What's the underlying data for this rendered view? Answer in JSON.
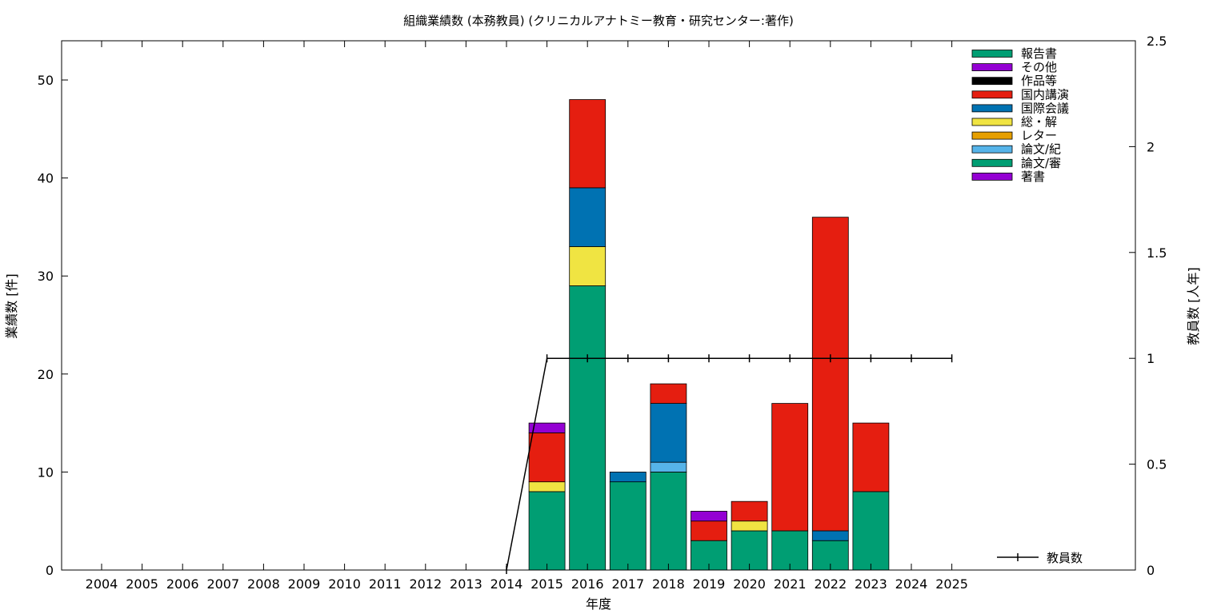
{
  "chart_data": {
    "type": "bar",
    "title": "組織業績数 (本務教員) (クリニカルアナトミー教育・研究センター:著作)",
    "xlabel": "年度",
    "ylabel": "業績数 [件]",
    "y2label": "教員数 [人年]",
    "ylim": [
      0,
      54
    ],
    "y2lim": [
      0,
      2.5
    ],
    "yticks": [
      "0",
      "10",
      "20",
      "30",
      "40",
      "50"
    ],
    "y2ticks": [
      "0",
      "0.5",
      "1",
      "1.5",
      "2",
      "2.5"
    ],
    "categories": [
      "2004",
      "2005",
      "2006",
      "2007",
      "2008",
      "2009",
      "2010",
      "2011",
      "2012",
      "2013",
      "2014",
      "2015",
      "2016",
      "2017",
      "2018",
      "2019",
      "2020",
      "2021",
      "2022",
      "2023",
      "2024",
      "2025"
    ],
    "grid": false,
    "legend_position": "top-right",
    "series": [
      {
        "name": "論文/審",
        "color": "#009e73",
        "values": [
          0,
          0,
          0,
          0,
          0,
          0,
          0,
          0,
          0,
          0,
          0,
          8,
          29,
          9,
          10,
          3,
          4,
          4,
          3,
          8,
          0,
          0
        ]
      },
      {
        "name": "論文/紀",
        "color": "#56b4e9",
        "values": [
          0,
          0,
          0,
          0,
          0,
          0,
          0,
          0,
          0,
          0,
          0,
          0,
          0,
          0,
          1,
          0,
          0,
          0,
          0,
          0,
          0,
          0
        ]
      },
      {
        "name": "総・解",
        "color": "#f0e442",
        "values": [
          0,
          0,
          0,
          0,
          0,
          0,
          0,
          0,
          0,
          0,
          0,
          1,
          4,
          0,
          0,
          0,
          1,
          0,
          0,
          0,
          0,
          0
        ]
      },
      {
        "name": "国際会議",
        "color": "#0072b2",
        "values": [
          0,
          0,
          0,
          0,
          0,
          0,
          0,
          0,
          0,
          0,
          0,
          0,
          6,
          1,
          6,
          0,
          0,
          0,
          1,
          0,
          0,
          0
        ]
      },
      {
        "name": "国内講演",
        "color": "#e51e10",
        "values": [
          0,
          0,
          0,
          0,
          0,
          0,
          0,
          0,
          0,
          0,
          0,
          5,
          9,
          0,
          2,
          2,
          2,
          13,
          32,
          7,
          0,
          0
        ]
      },
      {
        "name": "その他",
        "color": "#9400d3",
        "values": [
          0,
          0,
          0,
          0,
          0,
          0,
          0,
          0,
          0,
          0,
          0,
          1,
          0,
          0,
          0,
          1,
          0,
          0,
          0,
          0,
          0,
          0
        ]
      }
    ],
    "legend": [
      {
        "name": "報告書",
        "color": "#009e73"
      },
      {
        "name": "その他",
        "color": "#9400d3"
      },
      {
        "name": "作品等",
        "color": "#000000"
      },
      {
        "name": "国内講演",
        "color": "#e51e10"
      },
      {
        "name": "国際会議",
        "color": "#0072b2"
      },
      {
        "name": "総・解",
        "color": "#f0e442"
      },
      {
        "name": "レター",
        "color": "#e69f00"
      },
      {
        "name": "論文/紀",
        "color": "#56b4e9"
      },
      {
        "name": "論文/審",
        "color": "#009e73"
      },
      {
        "name": "著書",
        "color": "#9400d3"
      }
    ],
    "line_series": {
      "name": "教員数",
      "axis": "y2",
      "x": [
        "2014",
        "2015",
        "2016",
        "2017",
        "2018",
        "2019",
        "2020",
        "2021",
        "2022",
        "2023",
        "2024",
        "2025"
      ],
      "values": [
        0,
        1,
        1,
        1,
        1,
        1,
        1,
        1,
        1,
        1,
        1,
        1
      ]
    }
  }
}
